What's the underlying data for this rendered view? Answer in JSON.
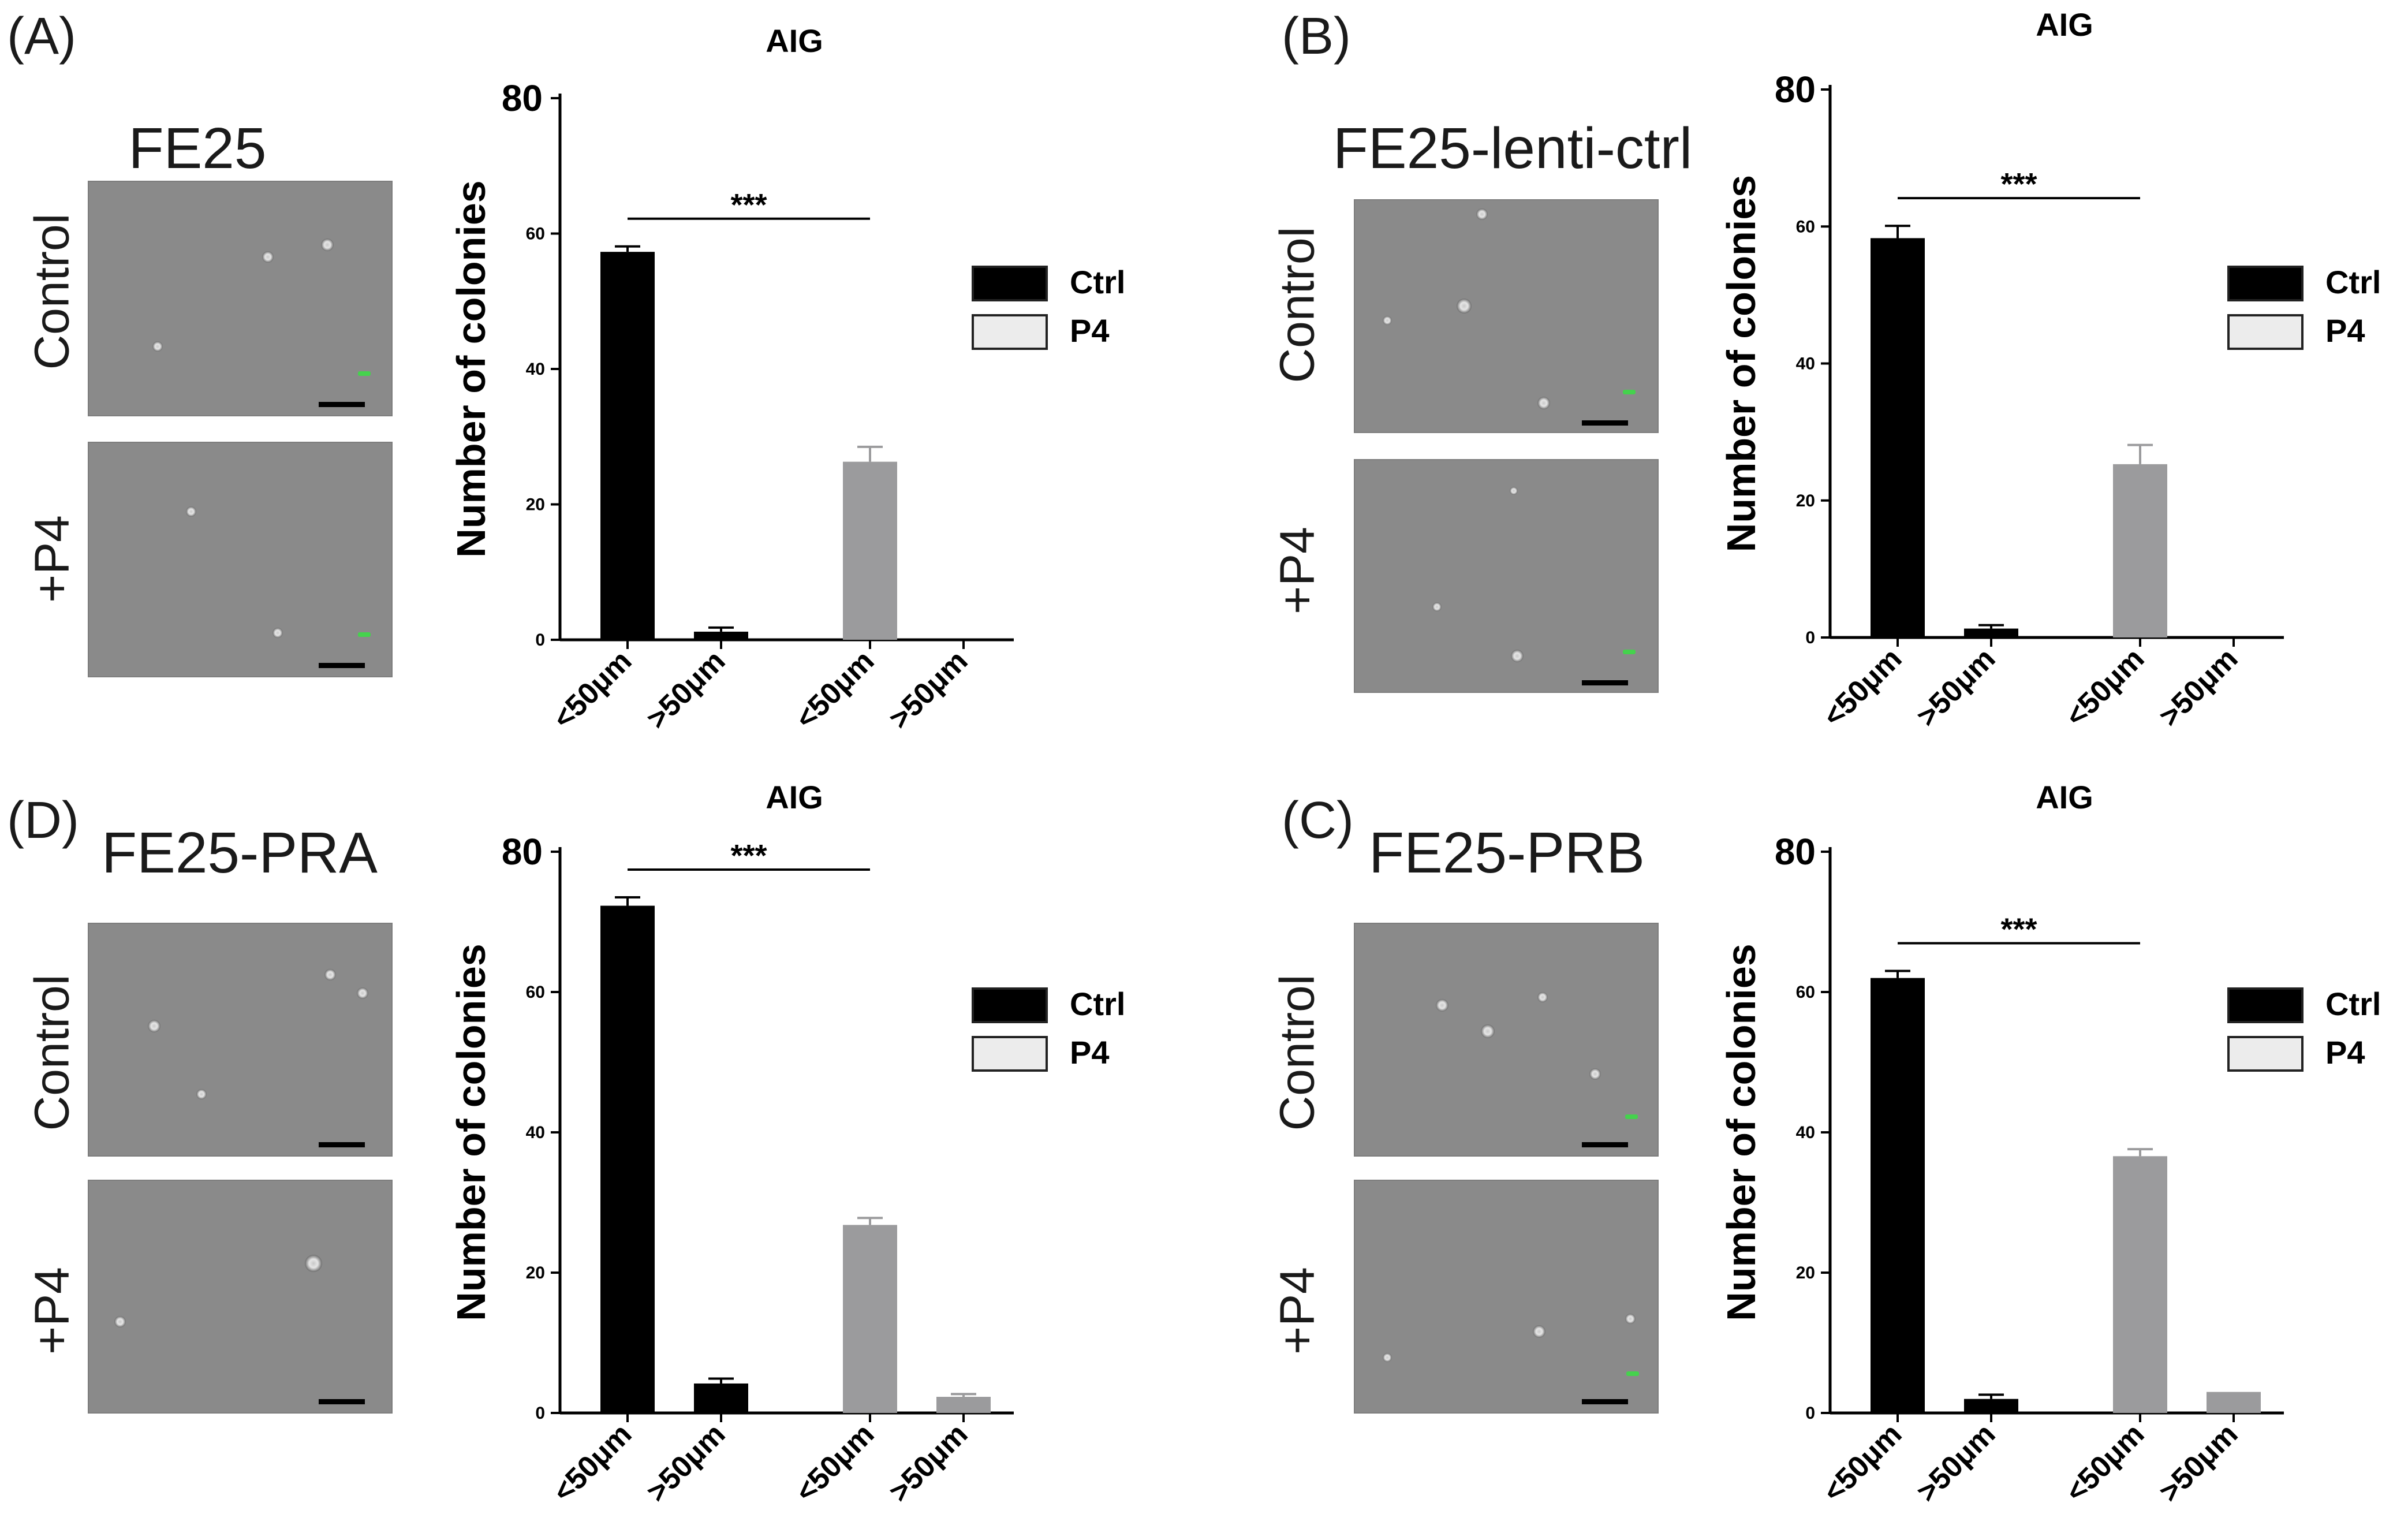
{
  "panels": [
    {
      "letter": "(A)",
      "cell_line": "FE25",
      "rows": {
        "top": "Control",
        "bottom": "+P4"
      }
    },
    {
      "letter": "(B)",
      "cell_line": "FE25-lenti-ctrl",
      "rows": {
        "top": "Control",
        "bottom": "+P4"
      }
    },
    {
      "letter": "(D)",
      "cell_line": "FE25-PRA",
      "rows": {
        "top": "Control",
        "bottom": "+P4"
      }
    },
    {
      "letter": "(C)",
      "cell_line": "FE25-PRB",
      "rows": {
        "top": "Control",
        "bottom": "+P4"
      }
    }
  ],
  "chart_data": [
    {
      "type": "bar",
      "title": "AIG",
      "ylabel": "Number of colonies",
      "categories": [
        "<50μm",
        ">50μm",
        "<50μm",
        ">50μm"
      ],
      "groups": [
        "Ctrl",
        "Ctrl",
        "P4",
        "P4"
      ],
      "values": [
        57.3,
        1.2,
        26.3,
        0
      ],
      "errors": [
        0.8,
        0.6,
        2.2,
        0
      ],
      "ylim": [
        0,
        80
      ],
      "yticks": [
        0,
        20,
        40,
        60
      ],
      "ytick_labels": [
        "0",
        "20",
        "40",
        "60"
      ],
      "top_label": "80",
      "legend": [
        {
          "name": "Ctrl",
          "color": "#000000"
        },
        {
          "name": "P4",
          "color": "#ececec"
        }
      ],
      "legend_placement": "right",
      "significance": "***",
      "bar_colors": {
        "Ctrl": "#000000",
        "P4": "#9b9b9d"
      }
    },
    {
      "type": "bar",
      "title": "AIG",
      "ylabel": "Number of colonies",
      "categories": [
        "<50μm",
        ">50μm",
        "<50μm",
        ">50μm"
      ],
      "groups": [
        "Ctrl",
        "Ctrl",
        "P4",
        "P4"
      ],
      "values": [
        58.3,
        1.3,
        25.3,
        0
      ],
      "errors": [
        1.8,
        0.5,
        2.8,
        0
      ],
      "ylim": [
        0,
        80
      ],
      "yticks": [
        0,
        20,
        40,
        60
      ],
      "ytick_labels": [
        "0",
        "20",
        "40",
        "60"
      ],
      "top_label": "80",
      "legend": [
        {
          "name": "Ctrl",
          "color": "#000000"
        },
        {
          "name": "P4",
          "color": "#ececec"
        }
      ],
      "legend_placement": "right",
      "significance": "***",
      "bar_colors": {
        "Ctrl": "#000000",
        "P4": "#9b9b9d"
      }
    },
    {
      "type": "bar",
      "title": "AIG",
      "ylabel": "Number of colonies",
      "categories": [
        "<50μm",
        ">50μm",
        "<50μm",
        ">50μm"
      ],
      "groups": [
        "Ctrl",
        "Ctrl",
        "P4",
        "P4"
      ],
      "values": [
        72.3,
        4.2,
        26.8,
        2.3
      ],
      "errors": [
        1.2,
        0.7,
        1.0,
        0.4
      ],
      "ylim": [
        0,
        80
      ],
      "yticks": [
        0,
        20,
        40,
        60
      ],
      "ytick_labels": [
        "0",
        "20",
        "40",
        "60"
      ],
      "top_label": "80",
      "legend": [
        {
          "name": "Ctrl",
          "color": "#000000"
        },
        {
          "name": "P4",
          "color": "#ececec"
        }
      ],
      "legend_placement": "right",
      "significance": "***",
      "bar_colors": {
        "Ctrl": "#000000",
        "P4": "#9b9b9d"
      }
    },
    {
      "type": "bar",
      "title": "AIG",
      "ylabel": "Number of colonies",
      "categories": [
        "<50μm",
        ">50μm",
        "<50μm",
        ">50μm"
      ],
      "groups": [
        "Ctrl",
        "Ctrl",
        "P4",
        "P4"
      ],
      "values": [
        62.0,
        2.0,
        36.6,
        3.0
      ],
      "errors": [
        1.0,
        0.6,
        1.0,
        0
      ],
      "ylim": [
        0,
        80
      ],
      "yticks": [
        0,
        20,
        40,
        60
      ],
      "ytick_labels": [
        "0",
        "20",
        "40",
        "60"
      ],
      "top_label": "80",
      "legend": [
        {
          "name": "Ctrl",
          "color": "#000000"
        },
        {
          "name": "P4",
          "color": "#ececec"
        }
      ],
      "legend_placement": "right",
      "significance": "***",
      "bar_colors": {
        "Ctrl": "#000000",
        "P4": "#9b9b9d"
      }
    }
  ]
}
